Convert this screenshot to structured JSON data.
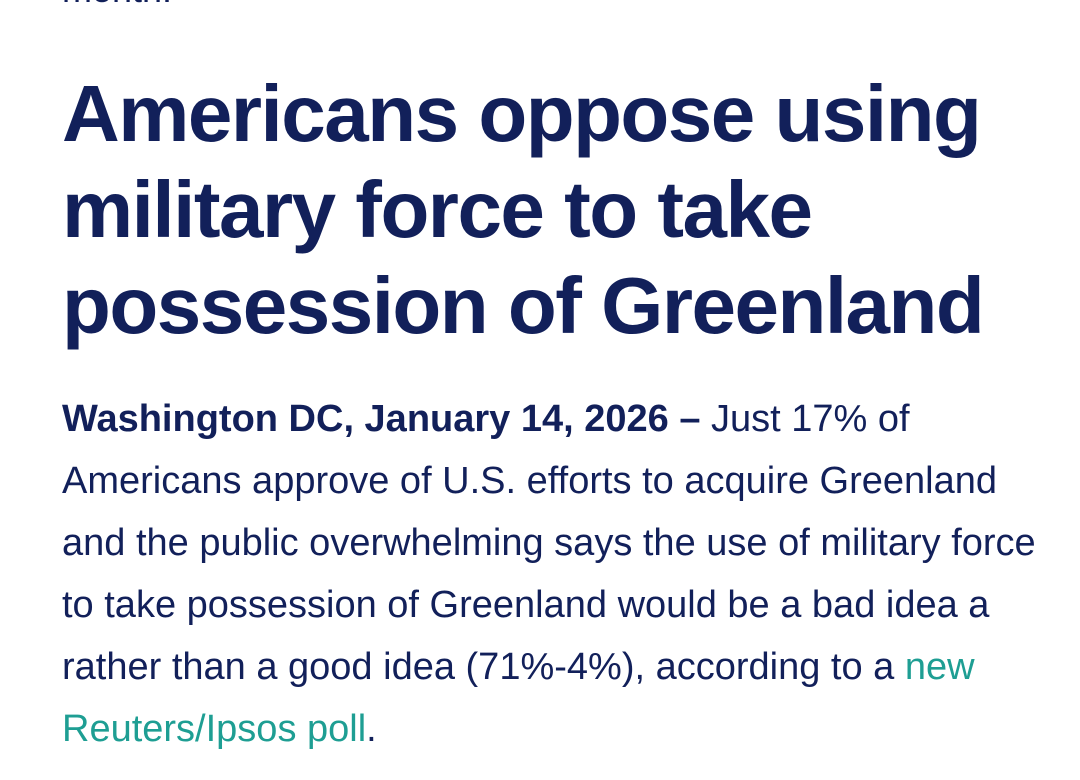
{
  "article": {
    "previous_text_fragment": "month.",
    "headline": "Americans oppose using military force to take possession of Greenland",
    "dateline": "Washington DC, January 14, 2026 –",
    "lead_before_link": " Just 17% of Americans approve of U.S. efforts to acquire Greenland and the public overwhelming says the use of military force to take possession of Greenland would be a bad idea a rather than a good idea (71%-4%), according to a ",
    "link_text": "new Reuters/Ipsos poll",
    "lead_after_link": "."
  },
  "colors": {
    "text": "#12205a",
    "link": "#1e9e93",
    "background": "#ffffff"
  }
}
